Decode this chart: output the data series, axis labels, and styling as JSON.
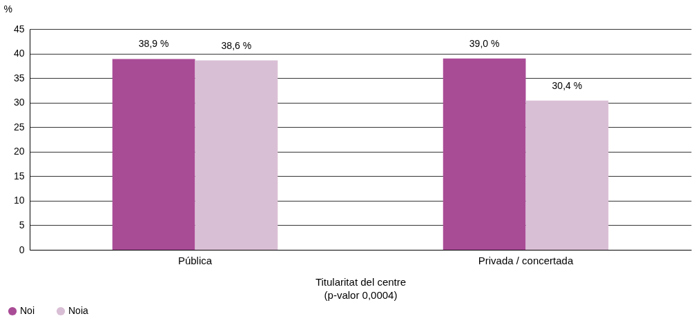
{
  "chart_data": {
    "type": "bar",
    "ylabel": "%",
    "xlabel": "Titularitat del centre\n(p-valor 0,0004)",
    "categories": [
      "Pública",
      "Privada / concertada"
    ],
    "series": [
      {
        "name": "Noi",
        "color": "#a94c96",
        "values": [
          38.9,
          39.0
        ],
        "value_labels": [
          "38,9 %",
          "39,0 %"
        ]
      },
      {
        "name": "Noia",
        "color": "#d9bfd5",
        "values": [
          38.6,
          30.4
        ],
        "value_labels": [
          "38,6 %",
          "30,4 %"
        ]
      }
    ],
    "ylim": [
      0,
      45
    ],
    "yticks": [
      0,
      5,
      10,
      15,
      20,
      25,
      30,
      35,
      40,
      45
    ],
    "grid": "y",
    "legend": "bottom left"
  }
}
